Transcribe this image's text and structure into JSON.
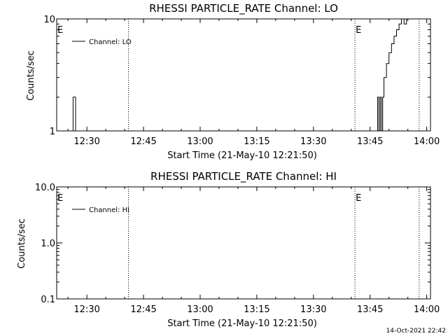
{
  "chart_data": [
    {
      "type": "line",
      "title": "RHESSI PARTICLE_RATE Channel: LO",
      "xlabel": "Start Time (21-May-10 12:21:50)",
      "ylabel": "Counts/sec",
      "xlim": [
        "12:22",
        "14:01"
      ],
      "ylim": [
        1,
        10
      ],
      "yscale": "log",
      "x_ticks": [
        "12:30",
        "12:45",
        "13:00",
        "13:15",
        "13:30",
        "13:45",
        "14:00"
      ],
      "y_ticks": [
        "1",
        "10"
      ],
      "legend": {
        "label": "Channel: LO",
        "position": "top-left"
      },
      "markers": [
        {
          "time": "12:22",
          "label": "E"
        },
        {
          "time": "12:41",
          "label": ""
        },
        {
          "time": "13:41",
          "label": "E"
        },
        {
          "time": "13:58",
          "label": ""
        }
      ],
      "series": [
        {
          "name": "Channel: LO",
          "x": [
            "12:26:00",
            "12:26:20",
            "12:26:40",
            "12:27:00",
            "12:27:20",
            "13:46:40",
            "13:47:00",
            "13:47:20",
            "13:47:40",
            "13:48:00",
            "13:48:20",
            "13:48:40",
            "13:49:00",
            "13:49:20",
            "13:50:00",
            "13:50:40",
            "13:51:20",
            "13:52:00",
            "13:52:40",
            "13:53:20",
            "13:54:00",
            "13:54:40",
            "13:55:20",
            "13:56:00",
            "13:56:40",
            "13:57:00"
          ],
          "y": [
            1,
            2,
            2,
            1,
            1,
            1,
            2,
            1,
            2,
            1,
            2,
            3,
            3,
            4,
            5,
            6,
            7,
            8,
            9,
            10,
            9,
            10,
            10,
            10,
            10,
            10
          ]
        }
      ]
    },
    {
      "type": "line",
      "title": "RHESSI PARTICLE_RATE Channel: HI",
      "xlabel": "Start Time (21-May-10 12:21:50)",
      "ylabel": "Counts/sec",
      "xlim": [
        "12:22",
        "14:01"
      ],
      "ylim": [
        0.1,
        10
      ],
      "yscale": "log",
      "x_ticks": [
        "12:30",
        "12:45",
        "13:00",
        "13:15",
        "13:30",
        "13:45",
        "14:00"
      ],
      "y_ticks": [
        "0.1",
        "1.0",
        "10.0"
      ],
      "legend": {
        "label": "Channel: HI",
        "position": "top-left"
      },
      "markers": [
        {
          "time": "12:22",
          "label": "E"
        },
        {
          "time": "12:41",
          "label": ""
        },
        {
          "time": "13:41",
          "label": "E"
        },
        {
          "time": "13:58",
          "label": ""
        }
      ],
      "series": [
        {
          "name": "Channel: HI",
          "x": [],
          "y": []
        }
      ]
    }
  ],
  "footer": {
    "date_stamp": "14-Oct-2021 22:42"
  }
}
